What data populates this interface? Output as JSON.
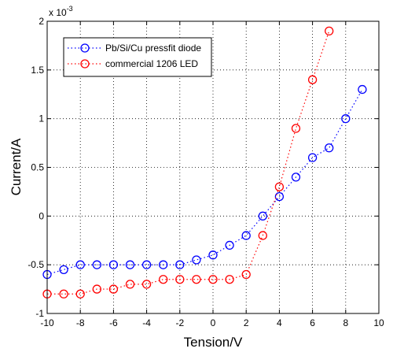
{
  "chart_data": {
    "type": "scatter",
    "xlabel": "Tension/V",
    "ylabel": "Current/A",
    "y_multiplier": "x 10",
    "y_multiplier_exp": "-3",
    "xlim": [
      -10,
      10
    ],
    "ylim": [
      -1,
      2
    ],
    "x_ticks": [
      "-10",
      "-8",
      "-6",
      "-4",
      "-2",
      "0",
      "2",
      "4",
      "6",
      "8",
      "10"
    ],
    "y_ticks": [
      "-1",
      "-0.5",
      "0",
      "0.5",
      "1",
      "1.5",
      "2"
    ],
    "grid": true,
    "legend_position": "top-left",
    "series": [
      {
        "name": "Pb/Si/Cu pressfit diode",
        "color": "#0000ff",
        "marker": "circle",
        "line_style": "dotted",
        "x": [
          -10,
          -9,
          -8,
          -7,
          -6,
          -5,
          -4,
          -3,
          -2,
          -1,
          0,
          1,
          2,
          3,
          4,
          5,
          6,
          7,
          8,
          9
        ],
        "y": [
          -0.6,
          -0.55,
          -0.5,
          -0.5,
          -0.5,
          -0.5,
          -0.5,
          -0.5,
          -0.5,
          -0.45,
          -0.4,
          -0.3,
          -0.2,
          0.0,
          0.2,
          0.4,
          0.6,
          0.7,
          1.0,
          1.3
        ]
      },
      {
        "name": "commercial 1206 LED",
        "color": "#ff0000",
        "marker": "circle",
        "line_style": "dotted",
        "x": [
          -10,
          -9,
          -8,
          -7,
          -6,
          -5,
          -4,
          -3,
          -2,
          -1,
          0,
          1,
          2,
          3,
          4,
          5,
          6,
          7
        ],
        "y": [
          -0.8,
          -0.8,
          -0.8,
          -0.75,
          -0.75,
          -0.7,
          -0.7,
          -0.65,
          -0.65,
          -0.65,
          -0.65,
          -0.65,
          -0.6,
          -0.2,
          0.3,
          0.9,
          1.4,
          1.9
        ]
      }
    ]
  }
}
